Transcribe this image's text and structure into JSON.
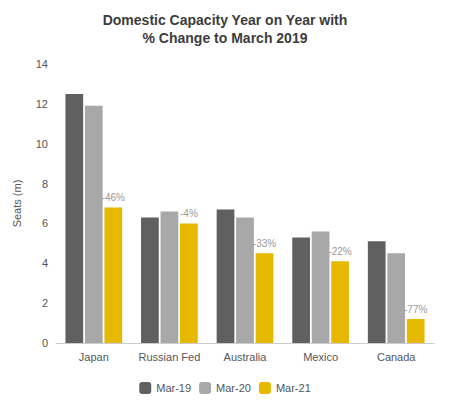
{
  "chart_data": {
    "type": "bar",
    "title": "Domestic Capacity Year on Year with\n% Change to March 2019",
    "ylabel": "Seats (m)",
    "categories": [
      "Japan",
      "Russian Fed",
      "Australia",
      "Mexico",
      "Canada"
    ],
    "series": [
      {
        "name": "Mar-19",
        "color": "#606060",
        "values": [
          12.5,
          6.3,
          6.7,
          5.3,
          5.1
        ]
      },
      {
        "name": "Mar-20",
        "color": "#a8a8a8",
        "values": [
          11.9,
          6.6,
          6.3,
          5.6,
          4.5
        ]
      },
      {
        "name": "Mar-21",
        "color": "#e6b800",
        "values": [
          6.8,
          6.0,
          4.5,
          4.1,
          1.2
        ]
      }
    ],
    "annotations": [
      "-46%",
      "-4%",
      "-33%",
      "-22%",
      "-77%"
    ],
    "ylim": [
      0,
      14
    ],
    "yticks": [
      0,
      2,
      4,
      6,
      8,
      10,
      12,
      14
    ],
    "grid": false,
    "legend": "bottom"
  }
}
